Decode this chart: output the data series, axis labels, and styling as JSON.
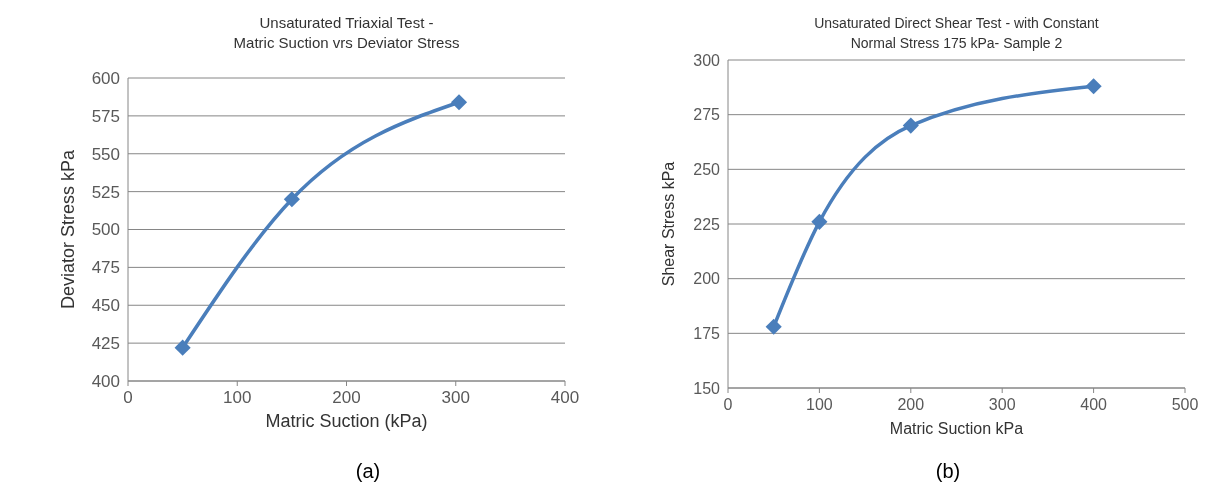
{
  "chart_data": [
    {
      "type": "line",
      "title": "Unsaturated Triaxial Test -\nMatric Suction vrs Deviator Stress",
      "xlabel": "Matric Suction (kPa)",
      "ylabel": "Deviator Stress kPa",
      "x": [
        50,
        150,
        303
      ],
      "series": [
        {
          "color": "#4a7ebb",
          "values": [
            422,
            520,
            584
          ]
        }
      ],
      "xlim": [
        0,
        400
      ],
      "xticks": [
        0,
        100,
        200,
        300,
        400
      ],
      "ylim": [
        400,
        600
      ],
      "yticks": [
        400,
        425,
        450,
        475,
        500,
        525,
        550,
        575,
        600
      ],
      "grid": "y",
      "marker": "diamond",
      "annotations": [
        "(a)"
      ]
    },
    {
      "type": "line",
      "title": "Unsaturated Direct Shear Test - with Constant\nNormal Stress 175 kPa- Sample 2",
      "xlabel": "Matric Suction kPa",
      "ylabel": "Shear Stress kPa",
      "x": [
        50,
        100,
        200,
        400
      ],
      "series": [
        {
          "color": "#4a7ebb",
          "values": [
            178,
            226,
            270,
            288
          ]
        }
      ],
      "xlim": [
        0,
        500
      ],
      "xticks": [
        0,
        100,
        200,
        300,
        400,
        500
      ],
      "ylim": [
        150,
        300
      ],
      "yticks": [
        150,
        175,
        200,
        225,
        250,
        275,
        300
      ],
      "grid": "y",
      "marker": "diamond",
      "annotations": [
        "(b)"
      ]
    }
  ]
}
